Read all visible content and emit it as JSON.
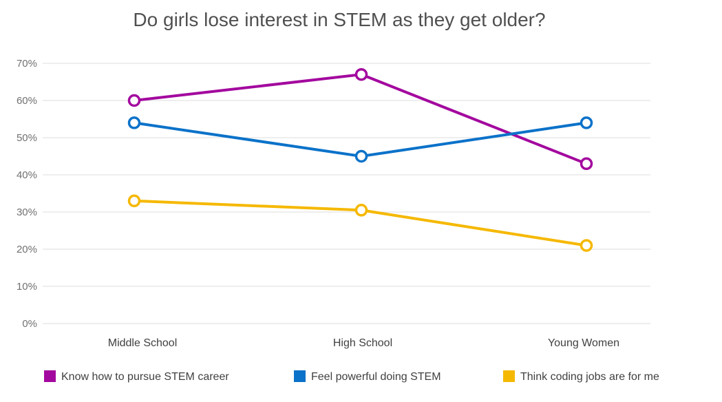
{
  "chart_data": {
    "type": "line",
    "title": "Do girls lose interest in STEM as they get older?",
    "xlabel": "",
    "ylabel": "",
    "categories": [
      "Middle School",
      "High School",
      "Young Women"
    ],
    "ylim": [
      0,
      70
    ],
    "yticks": [
      0,
      10,
      20,
      30,
      40,
      50,
      60,
      70
    ],
    "ytick_labels": [
      "0%",
      "10%",
      "20%",
      "30%",
      "40%",
      "50%",
      "60%",
      "70%"
    ],
    "grid": true,
    "legend_position": "bottom",
    "series": [
      {
        "name": "Know how to pursue STEM career",
        "color": "#a3089e",
        "values": [
          60,
          67,
          43
        ]
      },
      {
        "name": "Feel powerful doing STEM",
        "color": "#0b72c9",
        "values": [
          54,
          45,
          54
        ]
      },
      {
        "name": "Think coding jobs are for me",
        "color": "#f5b800",
        "values": [
          33,
          30.5,
          21
        ]
      }
    ]
  }
}
